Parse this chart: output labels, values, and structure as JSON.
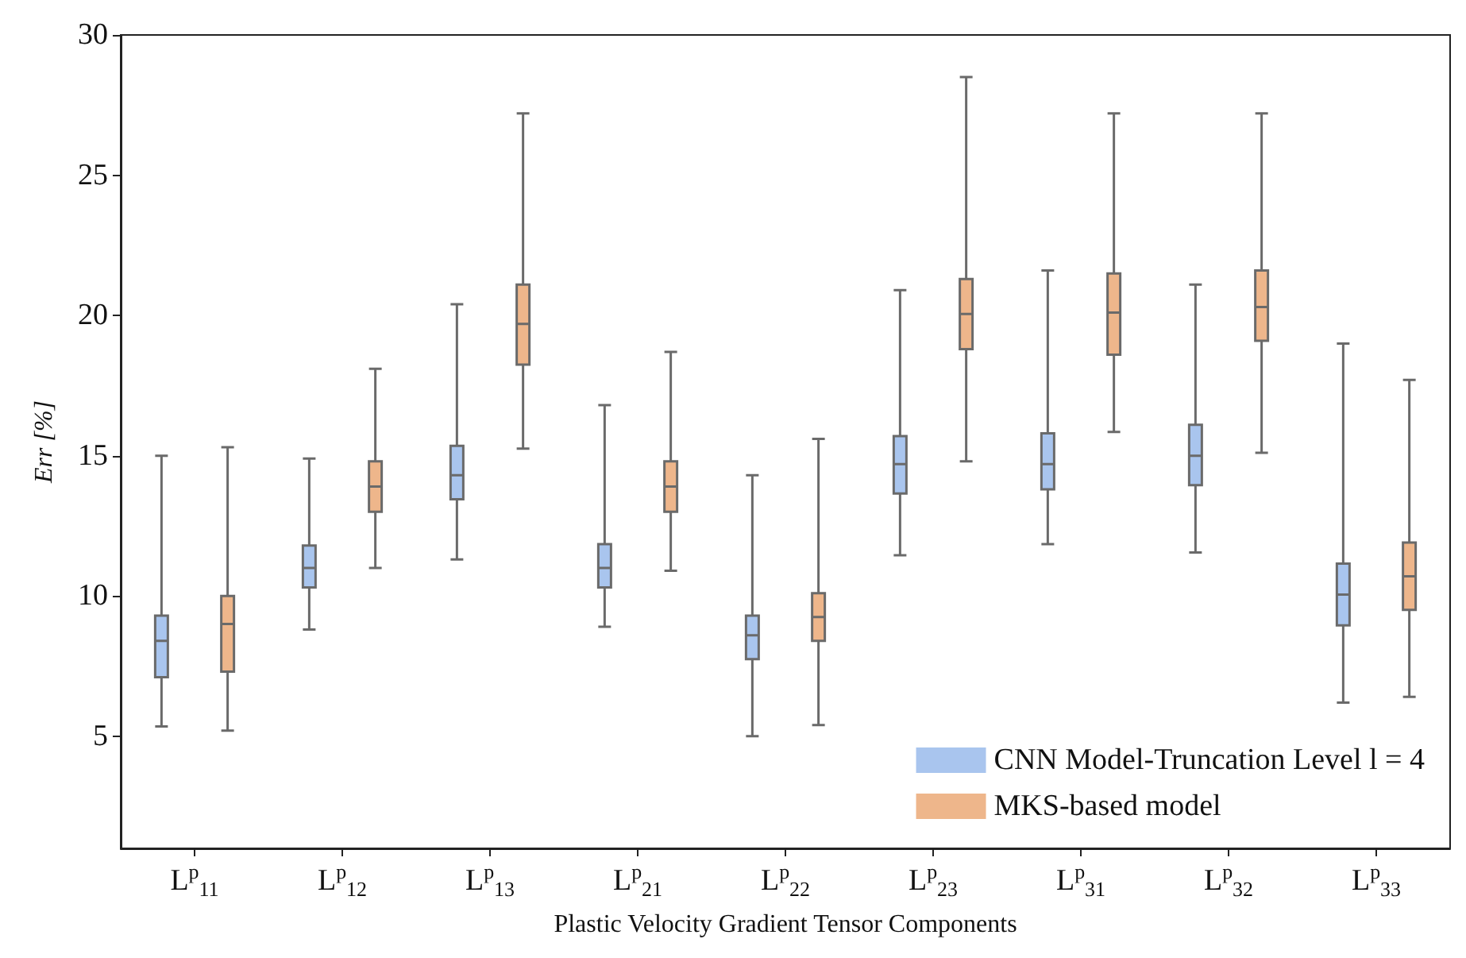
{
  "chart_data": {
    "type": "box",
    "xlabel": "Plastic Velocity Gradient Tensor Components",
    "ylabel": "Err [%]",
    "categories": [
      "L$^{p}$$_{11}$",
      "L$^{p}$$_{12}$",
      "L$^{p}$$_{13}$",
      "L$^{p}$$_{21}$",
      "L$^{p}$$_{22}$",
      "L$^{p}$$_{23}$",
      "L$^{p}$$_{31}$",
      "L$^{p}$$_{32}$",
      "L$^{p}$$_{33}$"
    ],
    "ylim": [
      1,
      30
    ],
    "yticks": [
      5,
      10,
      15,
      20,
      25,
      30
    ],
    "grid": false,
    "legend": "bottom right",
    "series": [
      {
        "name": "CNN Model-Truncation Level l = 4",
        "color": "#a9c5ee",
        "boxes": [
          {
            "low": 5.35,
            "q1": 7.1,
            "median": 8.4,
            "q3": 9.3,
            "high": 15.0
          },
          {
            "low": 8.8,
            "q1": 10.3,
            "median": 11.0,
            "q3": 11.8,
            "high": 14.9
          },
          {
            "low": 11.3,
            "q1": 13.45,
            "median": 14.3,
            "q3": 15.35,
            "high": 20.4
          },
          {
            "low": 8.9,
            "q1": 10.3,
            "median": 11.0,
            "q3": 11.85,
            "high": 16.8
          },
          {
            "low": 5.0,
            "q1": 7.75,
            "median": 8.6,
            "q3": 9.3,
            "high": 14.3
          },
          {
            "low": 11.45,
            "q1": 13.65,
            "median": 14.7,
            "q3": 15.7,
            "high": 20.9
          },
          {
            "low": 11.85,
            "q1": 13.8,
            "median": 14.7,
            "q3": 15.8,
            "high": 21.6
          },
          {
            "low": 11.55,
            "q1": 13.95,
            "median": 15.0,
            "q3": 16.1,
            "high": 21.1
          },
          {
            "low": 6.2,
            "q1": 8.95,
            "median": 10.05,
            "q3": 11.15,
            "high": 19.0
          }
        ]
      },
      {
        "name": "MKS-based model",
        "color": "#eeb68b",
        "boxes": [
          {
            "low": 5.2,
            "q1": 7.3,
            "median": 9.0,
            "q3": 10.0,
            "high": 15.3
          },
          {
            "low": 11.0,
            "q1": 13.0,
            "median": 13.9,
            "q3": 14.8,
            "high": 18.1
          },
          {
            "low": 15.25,
            "q1": 18.25,
            "median": 19.7,
            "q3": 21.1,
            "high": 27.2
          },
          {
            "low": 10.9,
            "q1": 13.0,
            "median": 13.9,
            "q3": 14.8,
            "high": 18.7
          },
          {
            "low": 5.4,
            "q1": 8.4,
            "median": 9.25,
            "q3": 10.1,
            "high": 15.6
          },
          {
            "low": 14.8,
            "q1": 18.8,
            "median": 20.05,
            "q3": 21.3,
            "high": 28.5
          },
          {
            "low": 15.85,
            "q1": 18.6,
            "median": 20.1,
            "q3": 21.5,
            "high": 27.2
          },
          {
            "low": 15.1,
            "q1": 19.1,
            "median": 20.3,
            "q3": 21.6,
            "high": 27.2
          },
          {
            "low": 6.4,
            "q1": 9.5,
            "median": 10.7,
            "q3": 11.9,
            "high": 17.7
          }
        ]
      }
    ]
  }
}
